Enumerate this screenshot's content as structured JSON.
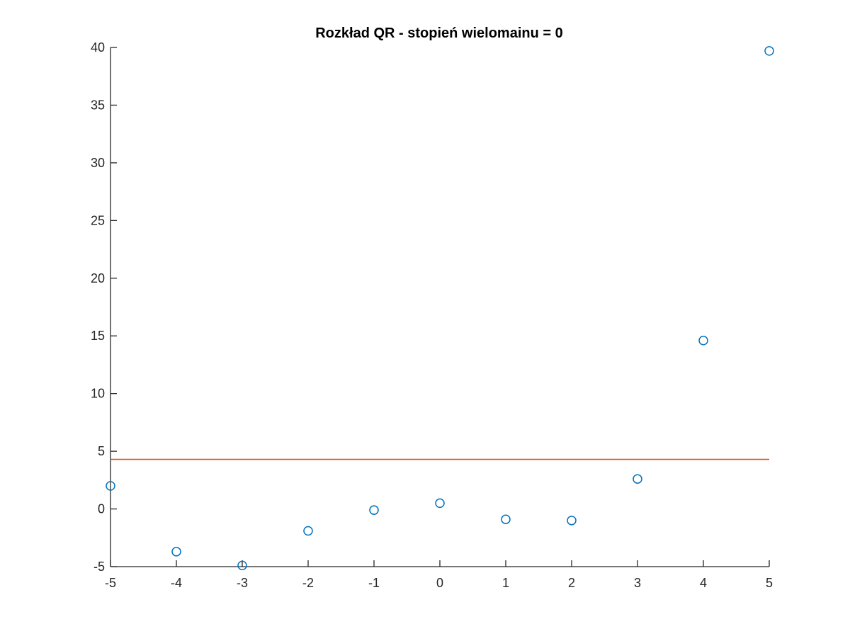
{
  "chart_data": {
    "type": "scatter",
    "title": "Rozkład QR - stopień wielomainu = 0",
    "xlabel": "",
    "ylabel": "",
    "xlim": [
      -5,
      5
    ],
    "ylim": [
      -5,
      40
    ],
    "xticks": [
      -5,
      -4,
      -3,
      -2,
      -1,
      0,
      1,
      2,
      3,
      4,
      5
    ],
    "xtick_labels": [
      "-5",
      "-4",
      "-3",
      "-2",
      "-1",
      "0",
      "1",
      "2",
      "3",
      "4",
      "5"
    ],
    "yticks": [
      -5,
      0,
      5,
      10,
      15,
      20,
      25,
      30,
      35,
      40
    ],
    "ytick_labels": [
      "-5",
      "0",
      "5",
      "10",
      "15",
      "20",
      "25",
      "30",
      "35",
      "40"
    ],
    "grid": false,
    "legend": "none",
    "series": [
      {
        "type": "scatter",
        "marker": "circle-open",
        "color": "#0072BD",
        "x": [
          -5,
          -4,
          -3,
          -2,
          -1,
          0,
          1,
          2,
          3,
          4,
          5
        ],
        "y": [
          2.0,
          -3.7,
          -4.9,
          -1.9,
          -0.1,
          0.5,
          -0.9,
          -1.0,
          2.6,
          14.6,
          39.7
        ]
      },
      {
        "type": "line",
        "color": "#D95319",
        "x": [
          -5,
          5
        ],
        "y": [
          4.3,
          4.3
        ]
      }
    ]
  }
}
